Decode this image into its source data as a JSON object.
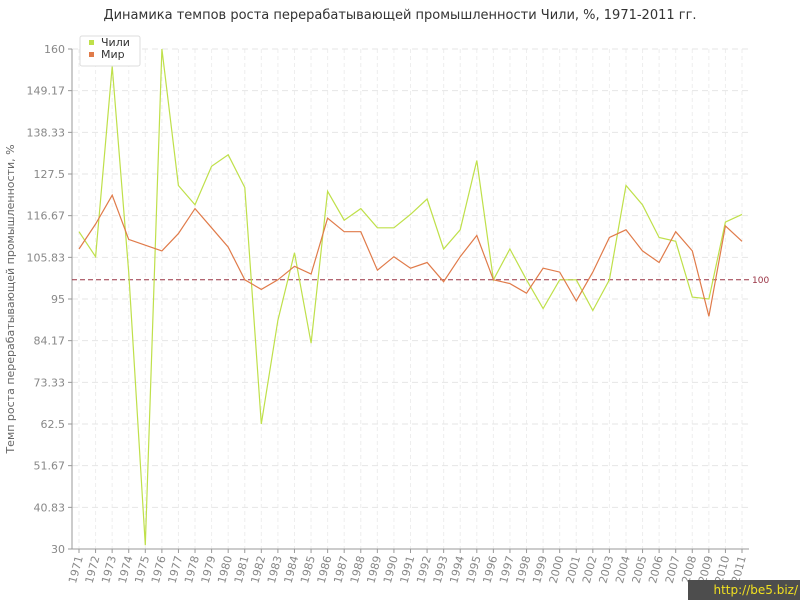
{
  "chart_data": {
    "type": "line",
    "title": "Динамика темпов роста перерабатывающей промышленности Чили, %, 1971-2011 гг.",
    "ylabel": "Темп роста перерабатывающей промышленности, %",
    "xlabel": "",
    "ylim": [
      30,
      160
    ],
    "yticks": [
      "30",
      "40.83",
      "51.67",
      "62.5",
      "73.33",
      "84.17",
      "95",
      "105.83",
      "116.67",
      "127.5",
      "138.33",
      "149.17",
      "160"
    ],
    "x": [
      "1971",
      "1972",
      "1973",
      "1974",
      "1975",
      "1976",
      "1977",
      "1978",
      "1979",
      "1980",
      "1981",
      "1982",
      "1983",
      "1984",
      "1985",
      "1986",
      "1987",
      "1988",
      "1989",
      "1990",
      "1991",
      "1992",
      "1993",
      "1994",
      "1995",
      "1996",
      "1997",
      "1998",
      "1999",
      "2000",
      "2001",
      "2002",
      "2003",
      "2004",
      "2005",
      "2006",
      "2007",
      "2008",
      "2009",
      "2010",
      "2011"
    ],
    "series": [
      {
        "name": "Чили",
        "color": "#bfe04a",
        "values": [
          112.5,
          106,
          155.5,
          102,
          31,
          160,
          124.5,
          119.5,
          129.5,
          132.5,
          124,
          62.5,
          89.5,
          107,
          83.5,
          123,
          115.5,
          118.5,
          113.5,
          113.5,
          117,
          121,
          108,
          113,
          131,
          100,
          108,
          100,
          92.5,
          100,
          100,
          92,
          100,
          124.5,
          119.5,
          111,
          110,
          95.5,
          95,
          115,
          117
        ]
      },
      {
        "name": "Мир",
        "color": "#e07b4a",
        "values": [
          108,
          114.5,
          122,
          110.5,
          109,
          107.5,
          112,
          118.5,
          113.5,
          108.5,
          100,
          97.5,
          100,
          103.5,
          101.5,
          116,
          112.5,
          112.5,
          102.5,
          106,
          103,
          104.5,
          99.5,
          106,
          111.5,
          100,
          99,
          96.5,
          103,
          102,
          94.5,
          102,
          111,
          113,
          107.5,
          104.5,
          112.5,
          107.5,
          90.5,
          114,
          110
        ]
      }
    ],
    "reference_line": {
      "value": 100,
      "label": "100",
      "color": "#993344"
    },
    "legend": "top-left",
    "grid": true
  },
  "watermark": "http://be5.biz/"
}
